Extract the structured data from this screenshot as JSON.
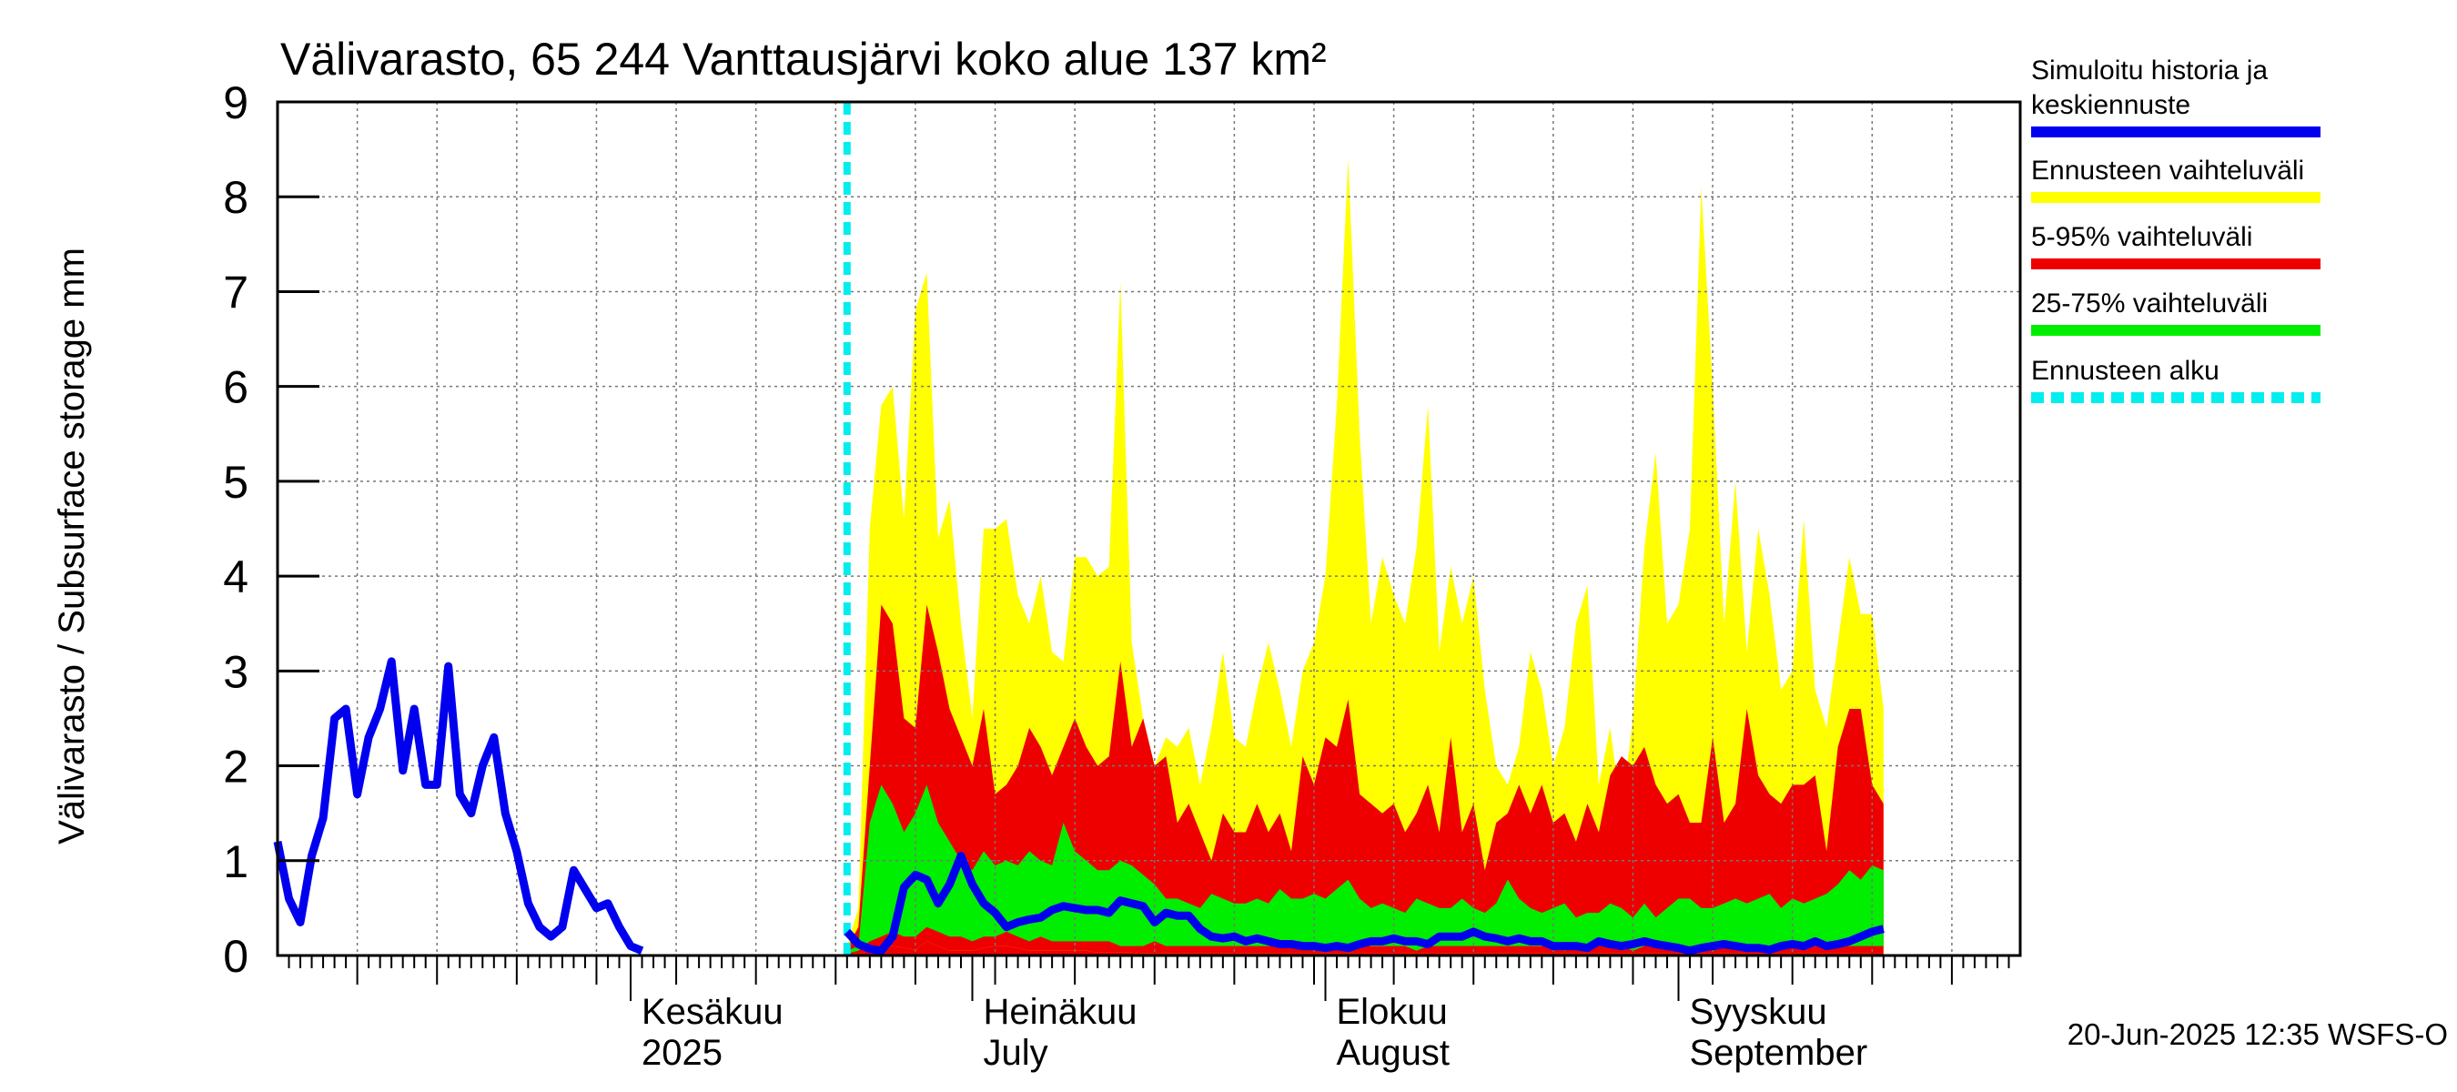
{
  "chart_data": {
    "type": "area",
    "title": "Välivarasto, 65 244 Vanttausjärvi koko alue 137 km²",
    "ylabel": "Välivarasto / Subsurface storage  mm",
    "ylim": [
      0,
      9
    ],
    "yticks": [
      0,
      1,
      2,
      3,
      4,
      5,
      6,
      7,
      8,
      9
    ],
    "x_start": "2025-05-01",
    "x_end": "2025-09-30",
    "forecast_start": "2025-06-20",
    "grid": true,
    "footer": "20-Jun-2025 12:35 WSFS-O",
    "month_labels": [
      {
        "date": "2025-06-01",
        "line1": "Kesäkuu",
        "line2": "2025"
      },
      {
        "date": "2025-07-01",
        "line1": "Heinäkuu",
        "line2": "July"
      },
      {
        "date": "2025-08-01",
        "line1": "Elokuu",
        "line2": "August"
      },
      {
        "date": "2025-09-01",
        "line1": "Syyskuu",
        "line2": "September"
      }
    ],
    "legend": {
      "position": "right",
      "entries": [
        {
          "line1": "Simuloitu historia ja",
          "line2": "keskiennuste",
          "color": "#0000ee",
          "style": "solid"
        },
        {
          "line1": "Ennusteen vaihteluväli",
          "line2": "",
          "color": "#ffff00",
          "style": "solid"
        },
        {
          "line1": "5-95% vaihteluväli",
          "line2": "",
          "color": "#ee0000",
          "style": "solid"
        },
        {
          "line1": "25-75% vaihteluväli",
          "line2": "",
          "color": "#00ee00",
          "style": "solid"
        },
        {
          "line1": "Ennusteen alku",
          "line2": "",
          "color": "#00eeee",
          "style": "dashed"
        }
      ]
    },
    "history": {
      "name": "Simuloitu historia",
      "start_day": 0,
      "values": [
        1.2,
        0.6,
        0.35,
        1.05,
        1.45,
        2.5,
        2.6,
        1.7,
        2.3,
        2.6,
        3.1,
        1.95,
        2.6,
        1.8,
        1.8,
        3.05,
        1.7,
        1.5,
        2.0,
        2.3,
        1.5,
        1.1,
        0.55,
        0.3,
        0.2,
        0.3,
        0.9,
        0.7,
        0.5,
        0.55,
        0.3,
        0.1,
        0.05
      ]
    },
    "forecast": {
      "start_day": 50,
      "max": [
        0.1,
        0.5,
        4.5,
        5.8,
        6.0,
        4.6,
        6.8,
        7.2,
        4.4,
        4.8,
        3.5,
        2.5,
        4.5,
        4.5,
        4.6,
        3.8,
        3.5,
        4.0,
        3.2,
        3.1,
        4.2,
        4.2,
        4.0,
        4.1,
        7.1,
        3.3,
        2.5,
        2.0,
        2.3,
        2.2,
        2.4,
        1.8,
        2.4,
        3.2,
        2.3,
        2.2,
        2.8,
        3.3,
        2.8,
        2.2,
        3.0,
        3.3,
        4.0,
        5.8,
        8.4,
        5.5,
        3.5,
        4.2,
        3.8,
        3.5,
        4.3,
        5.8,
        3.2,
        4.1,
        3.5,
        4.0,
        2.8,
        2.0,
        1.8,
        2.2,
        3.2,
        2.8,
        2.0,
        2.4,
        3.5,
        3.9,
        1.8,
        2.4,
        1.5,
        2.5,
        4.3,
        5.3,
        3.5,
        3.7,
        4.5,
        8.1,
        6.0,
        3.5,
        5.0,
        3.2,
        4.5,
        3.8,
        2.8,
        3.0,
        4.6,
        2.8,
        2.4,
        3.3,
        4.2,
        3.6,
        3.6,
        2.6
      ],
      "p95": [
        0.08,
        0.3,
        2.0,
        3.7,
        3.5,
        2.5,
        2.4,
        3.7,
        3.2,
        2.6,
        2.3,
        2.0,
        2.6,
        1.7,
        1.8,
        2.0,
        2.4,
        2.2,
        1.9,
        2.2,
        2.5,
        2.2,
        2.0,
        2.1,
        3.1,
        2.2,
        2.5,
        2.0,
        2.1,
        1.4,
        1.6,
        1.3,
        1.0,
        1.5,
        1.3,
        1.3,
        1.6,
        1.3,
        1.5,
        1.1,
        2.1,
        1.8,
        2.3,
        2.2,
        2.7,
        1.7,
        1.6,
        1.5,
        1.6,
        1.3,
        1.5,
        1.8,
        1.3,
        2.3,
        1.3,
        1.6,
        0.9,
        1.4,
        1.5,
        1.8,
        1.5,
        1.8,
        1.4,
        1.5,
        1.2,
        1.6,
        1.3,
        1.9,
        2.1,
        2.0,
        2.2,
        1.8,
        1.6,
        1.7,
        1.4,
        1.4,
        2.3,
        1.4,
        1.6,
        2.6,
        1.9,
        1.7,
        1.6,
        1.8,
        1.8,
        1.9,
        1.1,
        2.2,
        2.6,
        2.6,
        1.8,
        1.6
      ],
      "p75": [
        0.05,
        0.1,
        1.4,
        1.8,
        1.6,
        1.3,
        1.5,
        1.8,
        1.4,
        1.2,
        1.0,
        0.9,
        1.1,
        0.95,
        1.0,
        0.95,
        1.1,
        1.0,
        0.95,
        1.4,
        1.1,
        1.0,
        0.9,
        0.9,
        1.0,
        0.95,
        0.85,
        0.75,
        0.6,
        0.6,
        0.55,
        0.5,
        0.65,
        0.6,
        0.55,
        0.55,
        0.6,
        0.55,
        0.7,
        0.6,
        0.6,
        0.65,
        0.6,
        0.7,
        0.8,
        0.6,
        0.5,
        0.55,
        0.5,
        0.45,
        0.6,
        0.55,
        0.5,
        0.5,
        0.6,
        0.5,
        0.45,
        0.55,
        0.8,
        0.6,
        0.5,
        0.45,
        0.5,
        0.55,
        0.4,
        0.45,
        0.45,
        0.55,
        0.5,
        0.4,
        0.55,
        0.4,
        0.5,
        0.6,
        0.6,
        0.5,
        0.5,
        0.55,
        0.6,
        0.55,
        0.6,
        0.65,
        0.5,
        0.6,
        0.55,
        0.6,
        0.65,
        0.75,
        0.9,
        0.8,
        0.95,
        0.9
      ],
      "p25": [
        0.02,
        0.05,
        0.15,
        0.2,
        0.25,
        0.2,
        0.2,
        0.3,
        0.25,
        0.2,
        0.2,
        0.15,
        0.2,
        0.2,
        0.25,
        0.2,
        0.15,
        0.2,
        0.15,
        0.15,
        0.15,
        0.15,
        0.15,
        0.15,
        0.1,
        0.1,
        0.1,
        0.15,
        0.1,
        0.1,
        0.1,
        0.1,
        0.1,
        0.1,
        0.1,
        0.1,
        0.1,
        0.1,
        0.1,
        0.1,
        0.1,
        0.1,
        0.1,
        0.1,
        0.1,
        0.1,
        0.1,
        0.1,
        0.1,
        0.1,
        0.05,
        0.1,
        0.1,
        0.1,
        0.1,
        0.1,
        0.1,
        0.1,
        0.1,
        0.1,
        0.1,
        0.1,
        0.1,
        0.05,
        0.1,
        0.1,
        0.1,
        0.1,
        0.1,
        0.05,
        0.1,
        0.1,
        0.1,
        0.05,
        0.1,
        0.1,
        0.1,
        0.1,
        0.1,
        0.1,
        0.1,
        0.1,
        0.1,
        0.1,
        0.1,
        0.1,
        0.1,
        0.1,
        0.1,
        0.1,
        0.1,
        0.1
      ],
      "p5": [
        0.01,
        0.02,
        0.05,
        0.1,
        0.1,
        0.08,
        0.06,
        0.15,
        0.1,
        0.05,
        0.05,
        0.05,
        0.08,
        0.1,
        0.1,
        0.08,
        0.05,
        0.05,
        0.05,
        0.05,
        0.05,
        0.05,
        0.03,
        0.03,
        0.03,
        0.03,
        0.02,
        0.02,
        0.02,
        0.02,
        0.02,
        0.02,
        0.02,
        0.02,
        0.02,
        0.02,
        0.02,
        0.02,
        0.02,
        0.02,
        0.02,
        0.02,
        0.02,
        0.02,
        0.02,
        0.02,
        0.02,
        0.02,
        0.02,
        0.02,
        0.02,
        0.02,
        0.02,
        0.02,
        0.02,
        0.02,
        0.02,
        0.02,
        0.02,
        0.02,
        0.02,
        0.02,
        0.02,
        0.02,
        0.02,
        0.02,
        0.02,
        0.02,
        0.02,
        0.02,
        0.02,
        0.02,
        0.02,
        0.02,
        0.02,
        0.02,
        0.02,
        0.02,
        0.02,
        0.02,
        0.02,
        0.02,
        0.02,
        0.02,
        0.02,
        0.02,
        0.02,
        0.02,
        0.02,
        0.02,
        0.02,
        0.02
      ],
      "min": [
        0,
        0,
        0,
        0,
        0,
        0,
        0,
        0,
        0,
        0,
        0,
        0,
        0,
        0,
        0,
        0,
        0,
        0,
        0,
        0,
        0,
        0,
        0,
        0,
        0,
        0,
        0,
        0,
        0,
        0,
        0,
        0,
        0,
        0,
        0,
        0,
        0,
        0,
        0,
        0,
        0,
        0,
        0,
        0,
        0,
        0,
        0,
        0,
        0,
        0,
        0,
        0,
        0,
        0,
        0,
        0,
        0,
        0,
        0,
        0,
        0,
        0,
        0,
        0,
        0,
        0,
        0,
        0,
        0,
        0,
        0,
        0,
        0,
        0,
        0,
        0,
        0,
        0,
        0,
        0,
        0,
        0,
        0,
        0,
        0,
        0,
        0,
        0,
        0,
        0,
        0,
        0
      ],
      "mean": [
        0.25,
        0.12,
        0.07,
        0.05,
        0.2,
        0.72,
        0.85,
        0.8,
        0.55,
        0.75,
        1.05,
        0.75,
        0.55,
        0.45,
        0.3,
        0.35,
        0.38,
        0.4,
        0.48,
        0.52,
        0.5,
        0.48,
        0.48,
        0.45,
        0.58,
        0.55,
        0.52,
        0.35,
        0.45,
        0.42,
        0.42,
        0.28,
        0.2,
        0.18,
        0.2,
        0.15,
        0.18,
        0.15,
        0.12,
        0.12,
        0.1,
        0.1,
        0.08,
        0.1,
        0.08,
        0.12,
        0.15,
        0.15,
        0.18,
        0.15,
        0.15,
        0.12,
        0.2,
        0.2,
        0.2,
        0.25,
        0.2,
        0.18,
        0.15,
        0.18,
        0.15,
        0.15,
        0.1,
        0.1,
        0.1,
        0.08,
        0.15,
        0.12,
        0.1,
        0.12,
        0.15,
        0.12,
        0.1,
        0.08,
        0.05,
        0.08,
        0.1,
        0.12,
        0.1,
        0.08,
        0.08,
        0.06,
        0.1,
        0.12,
        0.1,
        0.15,
        0.1,
        0.12,
        0.15,
        0.2,
        0.25,
        0.28
      ]
    }
  }
}
